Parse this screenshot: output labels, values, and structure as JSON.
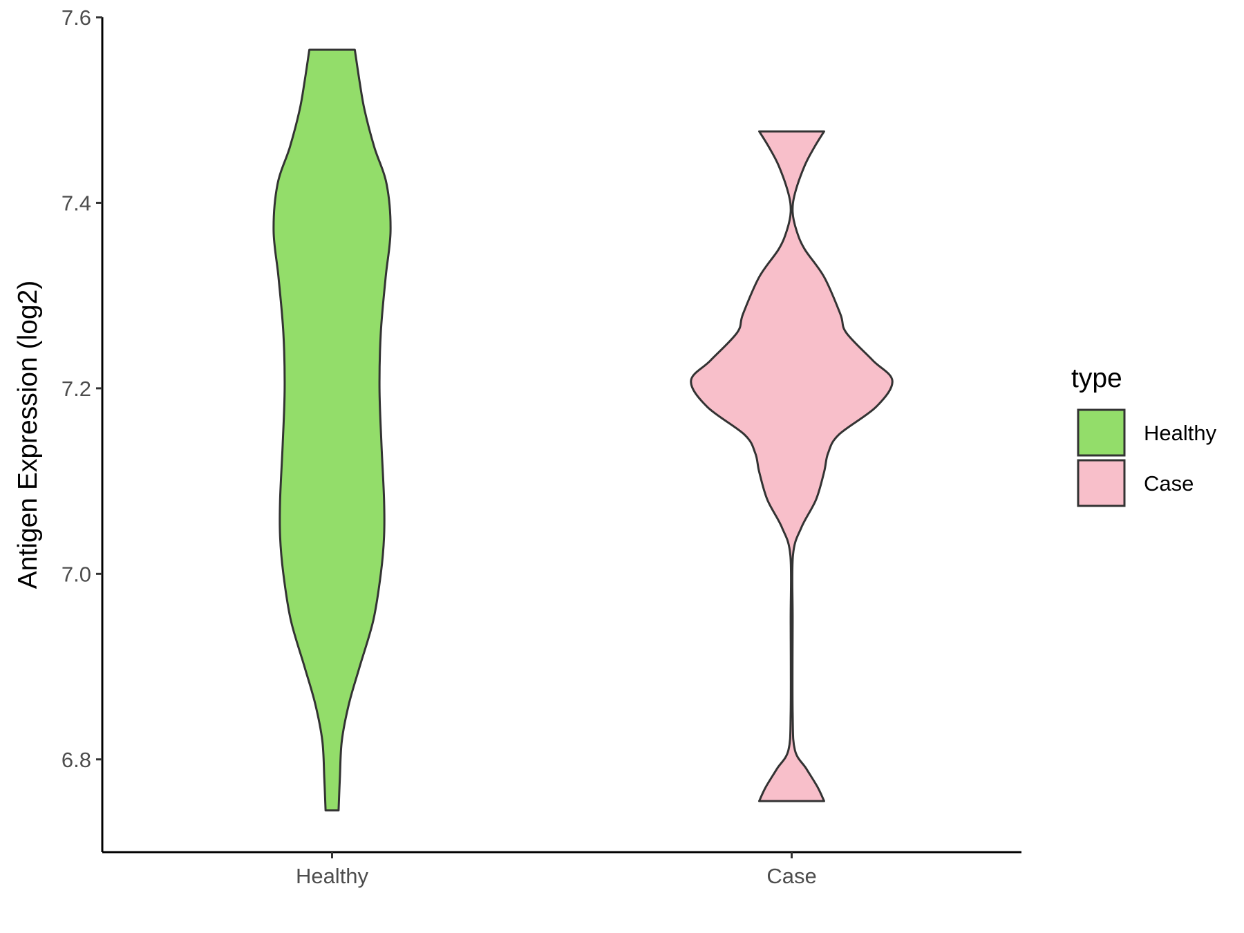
{
  "chart_data": {
    "type": "violin",
    "title": "",
    "xlabel": "",
    "ylabel": "Antigen Expression (log2)",
    "ylim": [
      6.7,
      7.6
    ],
    "yticks": [
      "6.8",
      "7.0",
      "7.2",
      "7.4",
      "7.6"
    ],
    "categories": [
      "Healthy",
      "Case"
    ],
    "grid": false,
    "legend": {
      "title": "type",
      "placement": "right"
    },
    "series": [
      {
        "name": "Healthy",
        "color": "#93dd6a",
        "range": [
          6.745,
          7.565
        ],
        "density": [
          [
            6.745,
            0.02
          ],
          [
            6.78,
            0.024
          ],
          [
            6.82,
            0.03
          ],
          [
            6.86,
            0.052
          ],
          [
            6.9,
            0.085
          ],
          [
            6.95,
            0.127
          ],
          [
            7.0,
            0.15
          ],
          [
            7.04,
            0.16
          ],
          [
            7.08,
            0.16
          ],
          [
            7.14,
            0.152
          ],
          [
            7.2,
            0.146
          ],
          [
            7.26,
            0.15
          ],
          [
            7.32,
            0.165
          ],
          [
            7.37,
            0.18
          ],
          [
            7.42,
            0.168
          ],
          [
            7.46,
            0.13
          ],
          [
            7.5,
            0.1
          ],
          [
            7.53,
            0.085
          ],
          [
            7.565,
            0.07
          ]
        ]
      },
      {
        "name": "Case",
        "color": "#f8bfca",
        "range": [
          6.755,
          7.477
        ],
        "density": [
          [
            6.755,
            0.1
          ],
          [
            6.77,
            0.08
          ],
          [
            6.79,
            0.045
          ],
          [
            6.81,
            0.01
          ],
          [
            6.85,
            0.003
          ],
          [
            6.95,
            0.003
          ],
          [
            7.02,
            0.004
          ],
          [
            7.05,
            0.03
          ],
          [
            7.08,
            0.075
          ],
          [
            7.11,
            0.1
          ],
          [
            7.13,
            0.112
          ],
          [
            7.15,
            0.145
          ],
          [
            7.18,
            0.26
          ],
          [
            7.208,
            0.31
          ],
          [
            7.23,
            0.25
          ],
          [
            7.26,
            0.168
          ],
          [
            7.28,
            0.15
          ],
          [
            7.32,
            0.1
          ],
          [
            7.35,
            0.04
          ],
          [
            7.37,
            0.015
          ],
          [
            7.39,
            0.003
          ],
          [
            7.41,
            0.01
          ],
          [
            7.44,
            0.04
          ],
          [
            7.46,
            0.07
          ],
          [
            7.477,
            0.1
          ]
        ]
      }
    ]
  }
}
